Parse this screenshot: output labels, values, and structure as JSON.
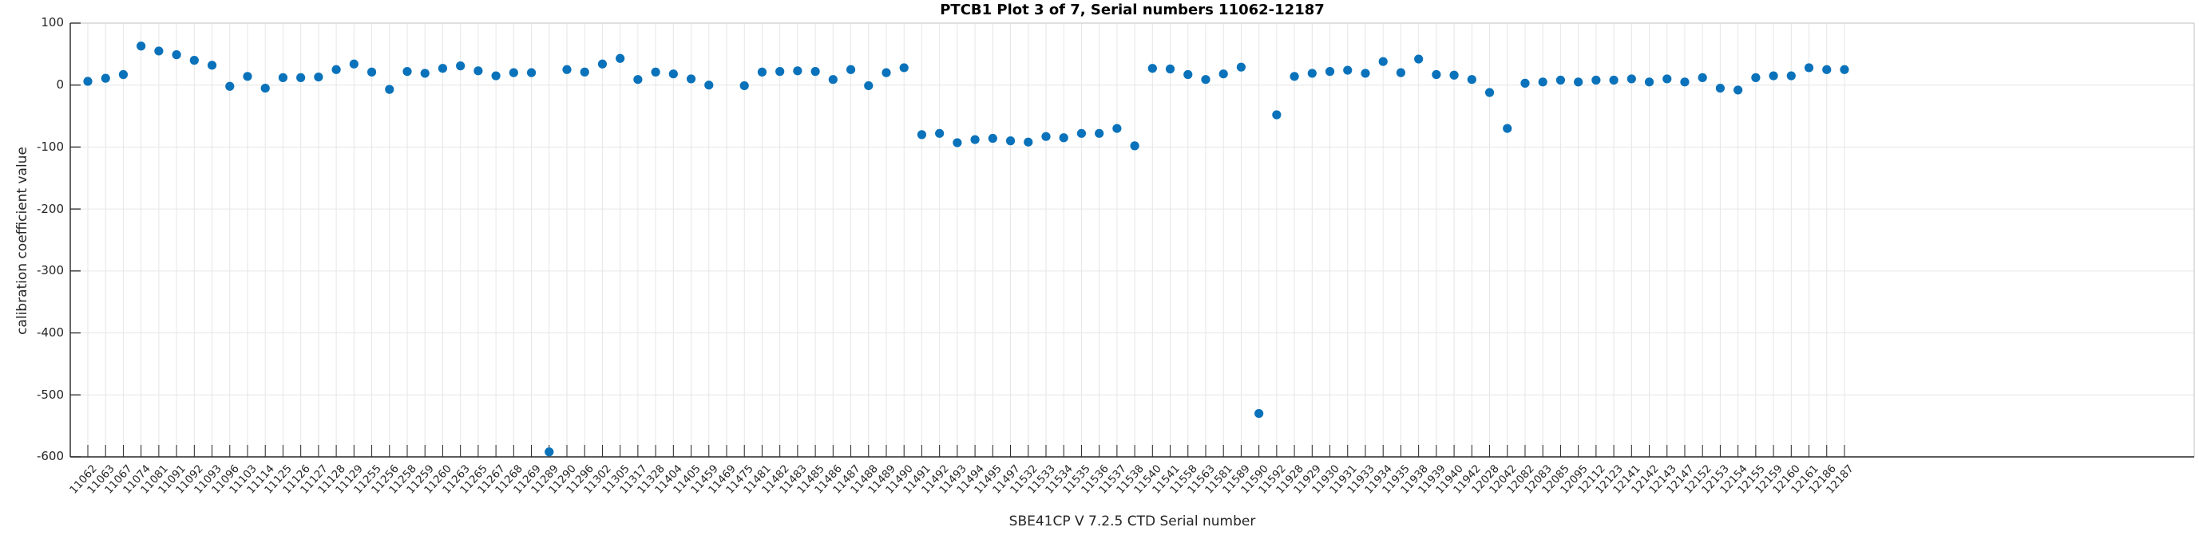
{
  "chart_data": {
    "type": "scatter",
    "title": "PTCB1 Plot 3 of 7, Serial numbers 11062-12187",
    "xlabel": "SBE41CP V 7.2.5 CTD Serial number",
    "ylabel": "calibration coefficient value",
    "ylim": [
      -600,
      100
    ],
    "yticks": [
      100,
      0,
      -100,
      -200,
      -300,
      -400,
      -500,
      -600
    ],
    "grid": "on",
    "legend": "none",
    "marker": {
      "shape": "filled-circle",
      "color": "#0a72ba"
    },
    "categories": [
      "11062",
      "11063",
      "11067",
      "11074",
      "11081",
      "11091",
      "11092",
      "11093",
      "11096",
      "11103",
      "11114",
      "11125",
      "11126",
      "11127",
      "11128",
      "11129",
      "11255",
      "11256",
      "11258",
      "11259",
      "11260",
      "11263",
      "11265",
      "11267",
      "11268",
      "11269",
      "11289",
      "11290",
      "11296",
      "11302",
      "11305",
      "11317",
      "11328",
      "11404",
      "11405",
      "11459",
      "11469",
      "11475",
      "11481",
      "11482",
      "11483",
      "11485",
      "11486",
      "11487",
      "11488",
      "11489",
      "11490",
      "11491",
      "11492",
      "11493",
      "11494",
      "11495",
      "11497",
      "11532",
      "11533",
      "11534",
      "11535",
      "11536",
      "11537",
      "11538",
      "11540",
      "11541",
      "11558",
      "11563",
      "11581",
      "11589",
      "11590",
      "11592",
      "11928",
      "11929",
      "11930",
      "11931",
      "11933",
      "11934",
      "11935",
      "11938",
      "11939",
      "11940",
      "11942",
      "12028",
      "12042",
      "12082",
      "12083",
      "12085",
      "12095",
      "12112",
      "12123",
      "12141",
      "12142",
      "12143",
      "12147",
      "12152",
      "12153",
      "12154",
      "12155",
      "12159",
      "12160",
      "12161",
      "12186",
      "12187"
    ],
    "values": [
      6,
      11,
      17,
      63,
      55,
      49,
      40,
      32,
      -2,
      14,
      -5,
      12,
      12,
      13,
      25,
      34,
      21,
      -7,
      22,
      19,
      27,
      31,
      23,
      15,
      20,
      20,
      -592,
      25,
      21,
      34,
      43,
      9,
      21,
      18,
      10,
      0,
      null,
      -1,
      21,
      22,
      23,
      22,
      9,
      25,
      -1,
      20,
      28,
      -80,
      -78,
      -93,
      -88,
      -86,
      -90,
      -92,
      -83,
      -85,
      -78,
      -78,
      -70,
      -98,
      27,
      26,
      17,
      9,
      18,
      29,
      -530,
      -48,
      14,
      19,
      22,
      24,
      19,
      38,
      20,
      42,
      17,
      16,
      9,
      -12,
      -70,
      3,
      5,
      8,
      5,
      8,
      8,
      10,
      5,
      10,
      5,
      12,
      -5,
      -8,
      12,
      15,
      15,
      28,
      25,
      25
    ],
    "notable_outliers": [
      {
        "serial": "11289",
        "value": -592
      },
      {
        "serial": "11590",
        "value": -530
      }
    ],
    "colors": {
      "marker": "#0a72ba",
      "axis": "#262626",
      "grid": "#e6e6e6",
      "box_top_right": "#cccccc",
      "background": "#ffffff"
    }
  }
}
